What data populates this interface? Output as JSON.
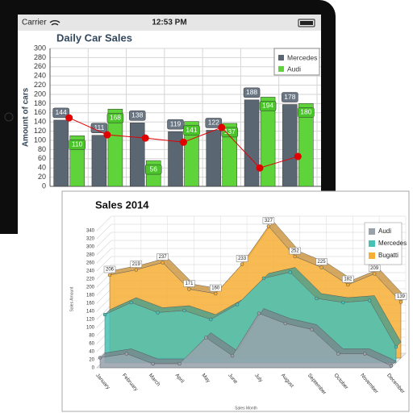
{
  "status_bar": {
    "carrier": "Carrier",
    "time": "12:53 PM"
  },
  "chart_data": [
    {
      "type": "bar",
      "title": "Daily Car Sales",
      "y_label": "Amount of cars",
      "categories": [
        null,
        null,
        null,
        null,
        null,
        null,
        null
      ],
      "series": [
        {
          "name": "Mercedes",
          "color": "#5b6673",
          "values": [
            144,
            111,
            138,
            119,
            122,
            188,
            178
          ]
        },
        {
          "name": "Audi",
          "color": "#5ed43a",
          "values": [
            110,
            168,
            56,
            141,
            137,
            194,
            180
          ]
        },
        {
          "type": "line",
          "color": "#e00000",
          "values": [
            149,
            112,
            105,
            96,
            128,
            40,
            65
          ]
        }
      ],
      "ylim": [
        0,
        300
      ],
      "yticks": [
        0,
        20,
        40,
        60,
        80,
        100,
        120,
        140,
        160,
        180,
        200,
        220,
        240,
        260,
        280,
        300
      ],
      "grid": true,
      "legend": "top-right"
    },
    {
      "type": "area",
      "title": "Sales 2014",
      "x_label": "Sales Month",
      "y_label": "Sales Amount",
      "categories": [
        "January",
        "February",
        "March",
        "April",
        "May",
        "June",
        "July",
        "August",
        "September",
        "October",
        "November",
        "December"
      ],
      "series": [
        {
          "name": "Audi",
          "color": "#98a1ac",
          "values": [
            25,
            35,
            10,
            10,
            75,
            30,
            135,
            110,
            95,
            35,
            35,
            5
          ]
        },
        {
          "name": "Mercedes",
          "color": "#45c1b6",
          "values": [
            120,
            150,
            125,
            130,
            108,
            145,
            210,
            225,
            160,
            150,
            155,
            40
          ]
        },
        {
          "name": "Bugatti",
          "color": "#f7ae35",
          "values": [
            206,
            219,
            237,
            171,
            160,
            233,
            327,
            252,
            225,
            182,
            209,
            139
          ]
        }
      ],
      "ylim": [
        0,
        340
      ],
      "yticks": [
        0,
        20,
        40,
        60,
        80,
        100,
        120,
        140,
        160,
        180,
        200,
        220,
        240,
        260,
        280,
        300,
        320,
        340
      ],
      "grid": true,
      "legend": "top-right"
    }
  ]
}
